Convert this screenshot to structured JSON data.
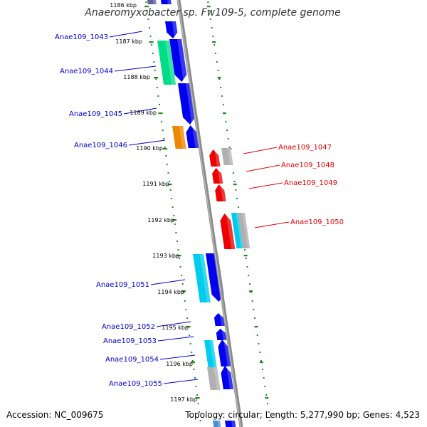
{
  "title": "Anaeromyxobacter sp. Fw109-5, complete genome",
  "accession": "Accession: NC_009675",
  "summary": "Topology: circular; Length: 5,277,990 bp; Genes: 4,523",
  "colors": {
    "forward_label": "#0000cc",
    "reverse_label": "#dd0000",
    "backbone": "#808080",
    "tick": "#228b22",
    "blue": "#0000ee",
    "cyan": "#00ccee",
    "green": "#00dd88",
    "orange": "#ee8800",
    "red": "#ee0000",
    "gray": "#b0b0b0",
    "purple": "#6060a0"
  },
  "ruler": [
    {
      "label": "1186 kbp"
    },
    {
      "label": "1187 kbp"
    },
    {
      "label": "1188 kbp"
    },
    {
      "label": "1189 kbp"
    },
    {
      "label": "1190 kbp"
    },
    {
      "label": "1191 kbp"
    },
    {
      "label": "1192 kbp"
    },
    {
      "label": "1193 kbp"
    },
    {
      "label": "1194 kbp"
    },
    {
      "label": "1195 kbp"
    },
    {
      "label": "1196 kbp"
    },
    {
      "label": "1197 kbp"
    }
  ],
  "gene_labels": [
    {
      "text": "Anae109_1043",
      "strand": "forward"
    },
    {
      "text": "Anae109_1044",
      "strand": "forward"
    },
    {
      "text": "Anae109_1045",
      "strand": "forward"
    },
    {
      "text": "Anae109_1046",
      "strand": "forward"
    },
    {
      "text": "Anae109_1047",
      "strand": "reverse"
    },
    {
      "text": "Anae109_1048",
      "strand": "reverse"
    },
    {
      "text": "Anae109_1049",
      "strand": "reverse"
    },
    {
      "text": "Anae109_1050",
      "strand": "reverse"
    },
    {
      "text": "Anae109_1051",
      "strand": "forward"
    },
    {
      "text": "Anae109_1052",
      "strand": "forward"
    },
    {
      "text": "Anae109_1053",
      "strand": "forward"
    },
    {
      "text": "Anae109_1054",
      "strand": "forward"
    },
    {
      "text": "Anae109_1055",
      "strand": "forward"
    }
  ]
}
